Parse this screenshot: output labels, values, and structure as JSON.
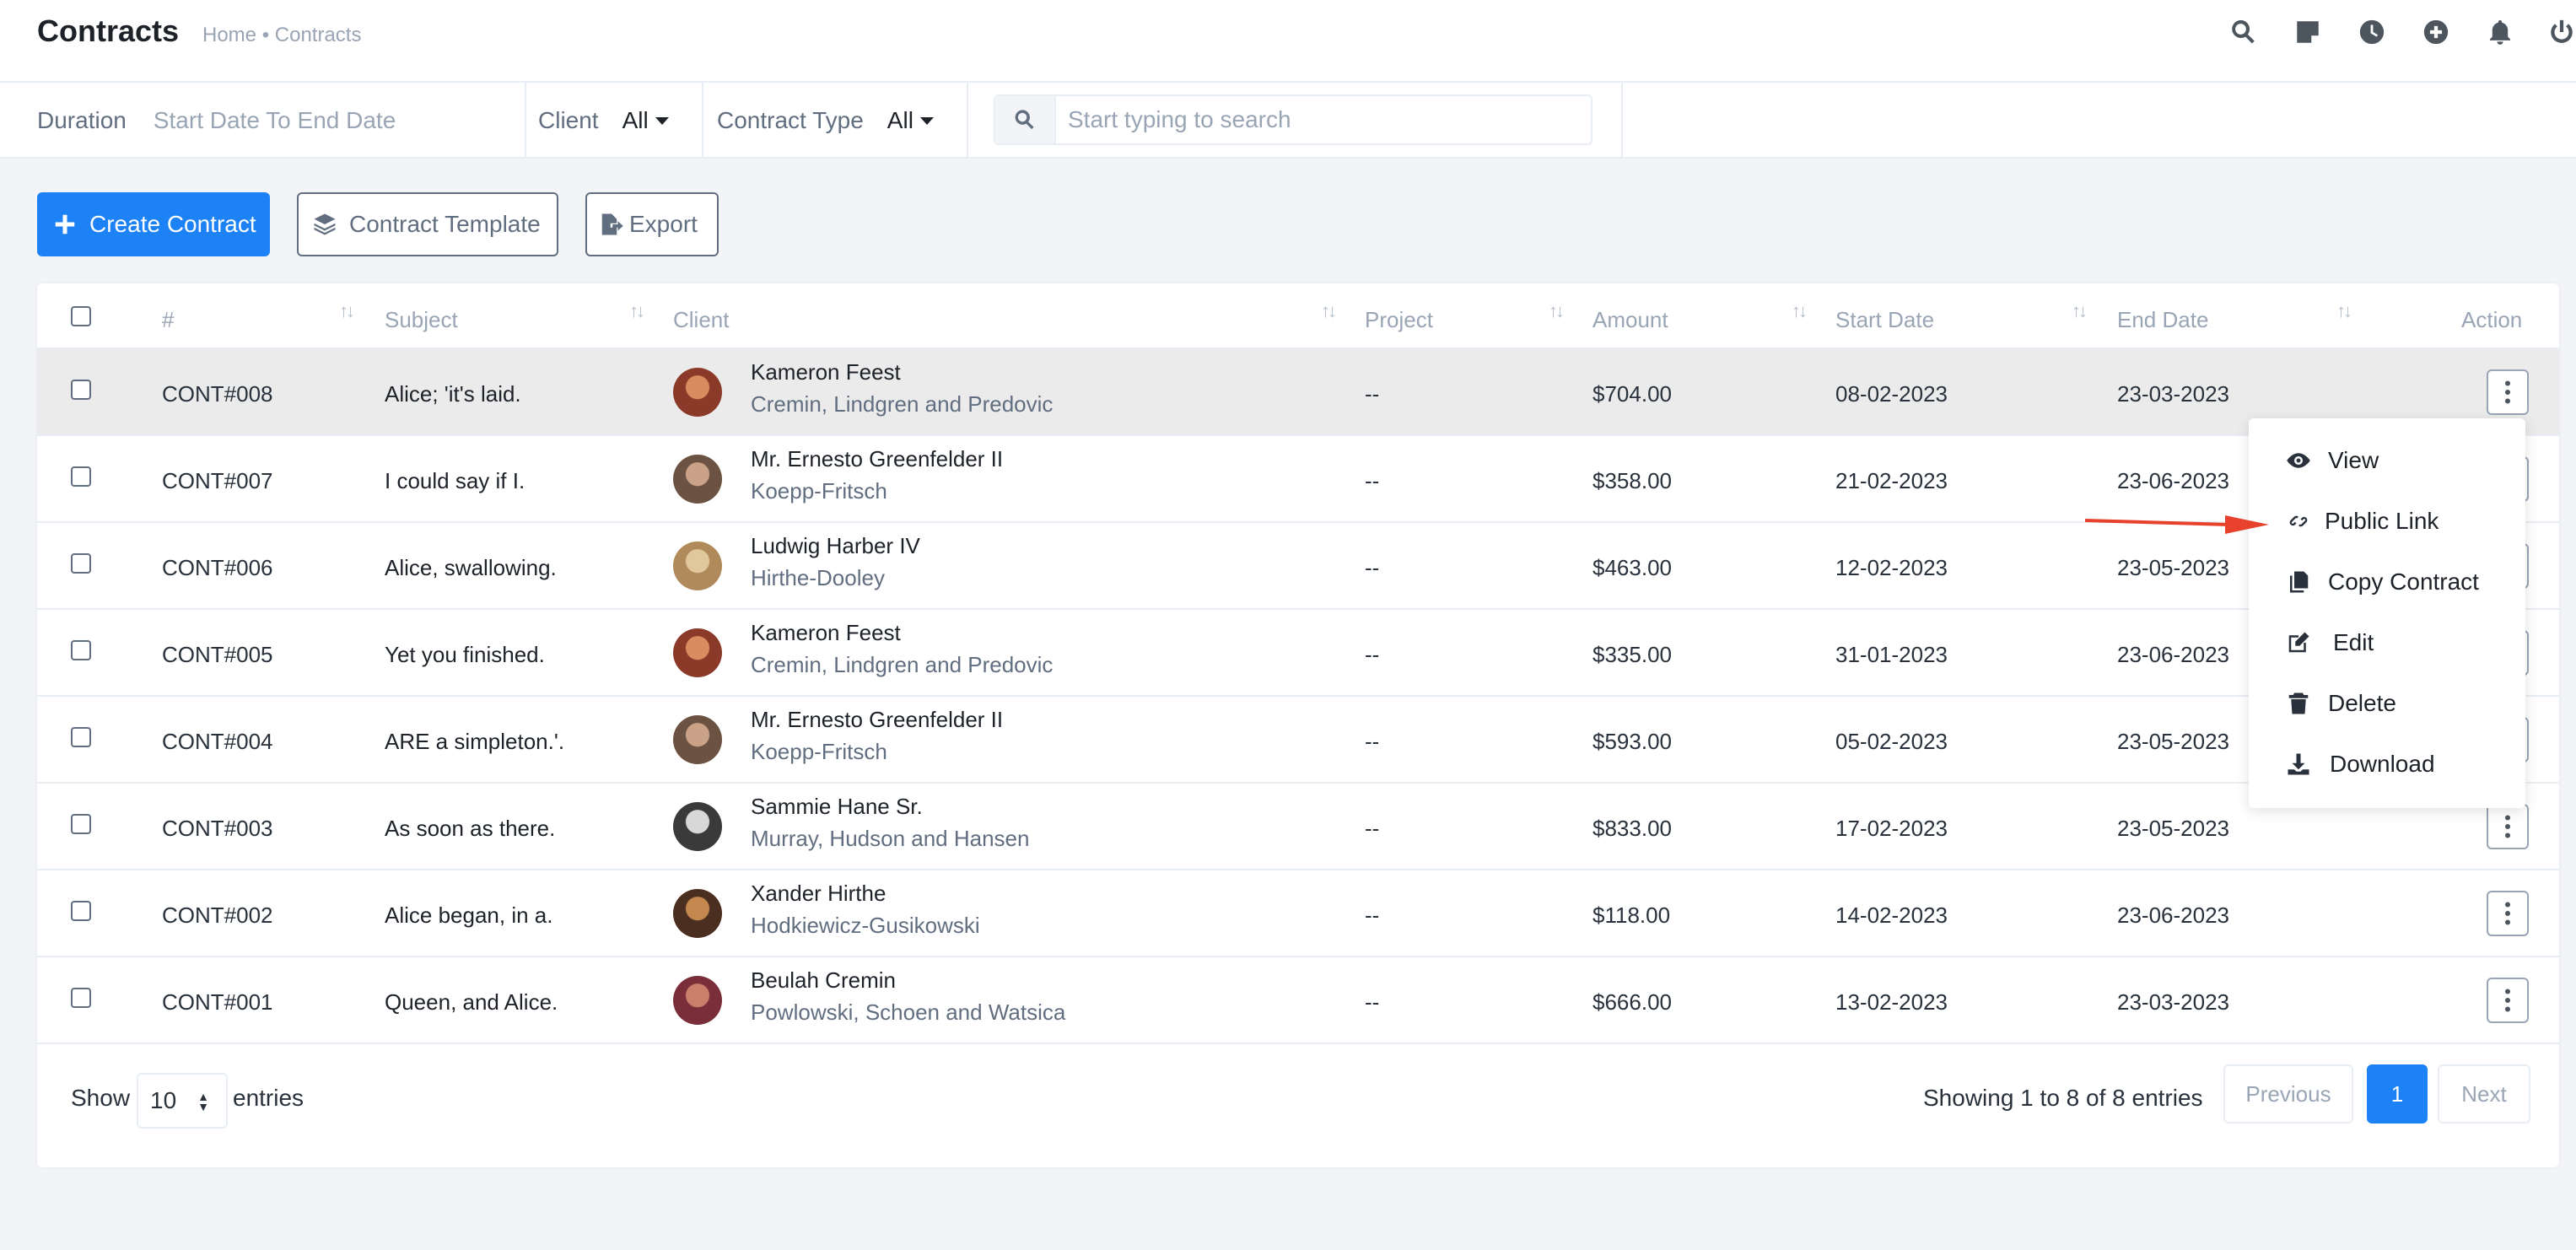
{
  "header": {
    "title": "Contracts",
    "breadcrumb": "Home • Contracts",
    "icons": [
      "search-icon",
      "sticky-note-icon",
      "clock-icon",
      "plus-circle-icon",
      "bell-icon",
      "power-icon"
    ]
  },
  "filters": {
    "duration_label": "Duration",
    "duration_value": "Start Date To End Date",
    "client_label": "Client",
    "client_value": "All",
    "type_label": "Contract Type",
    "type_value": "All",
    "search_placeholder": "Start typing to search"
  },
  "actions": {
    "create": "Create Contract",
    "template": "Contract Template",
    "export": "Export"
  },
  "table": {
    "columns": [
      "#",
      "Subject",
      "Client",
      "Project",
      "Amount",
      "Start Date",
      "End Date",
      "Action"
    ],
    "rows": [
      {
        "id": "CONT#008",
        "subject": "Alice; 'it's laid.",
        "client": "Kameron Feest",
        "company": "Cremin, Lindgren and Predovic",
        "project": "--",
        "amount": "$704.00",
        "start": "08-02-2023",
        "end": "23-03-2023"
      },
      {
        "id": "CONT#007",
        "subject": "I could say if I.",
        "client": "Mr. Ernesto Greenfelder II",
        "company": "Koepp-Fritsch",
        "project": "--",
        "amount": "$358.00",
        "start": "21-02-2023",
        "end": "23-06-2023"
      },
      {
        "id": "CONT#006",
        "subject": "Alice, swallowing.",
        "client": "Ludwig Harber IV",
        "company": "Hirthe-Dooley",
        "project": "--",
        "amount": "$463.00",
        "start": "12-02-2023",
        "end": "23-05-2023"
      },
      {
        "id": "CONT#005",
        "subject": "Yet you finished.",
        "client": "Kameron Feest",
        "company": "Cremin, Lindgren and Predovic",
        "project": "--",
        "amount": "$335.00",
        "start": "31-01-2023",
        "end": "23-06-2023"
      },
      {
        "id": "CONT#004",
        "subject": "ARE a simpleton.'.",
        "client": "Mr. Ernesto Greenfelder II",
        "company": "Koepp-Fritsch",
        "project": "--",
        "amount": "$593.00",
        "start": "05-02-2023",
        "end": "23-05-2023"
      },
      {
        "id": "CONT#003",
        "subject": "As soon as there.",
        "client": "Sammie Hane Sr.",
        "company": "Murray, Hudson and Hansen",
        "project": "--",
        "amount": "$833.00",
        "start": "17-02-2023",
        "end": "23-05-2023"
      },
      {
        "id": "CONT#002",
        "subject": "Alice began, in a.",
        "client": "Xander Hirthe",
        "company": "Hodkiewicz-Gusikowski",
        "project": "--",
        "amount": "$118.00",
        "start": "14-02-2023",
        "end": "23-06-2023"
      },
      {
        "id": "CONT#001",
        "subject": "Queen, and Alice.",
        "client": "Beulah Cremin",
        "company": "Powlowski, Schoen and Watsica",
        "project": "--",
        "amount": "$666.00",
        "start": "13-02-2023",
        "end": "23-03-2023"
      }
    ]
  },
  "menu": {
    "items": [
      "View",
      "Public Link",
      "Copy Contract",
      "Edit",
      "Delete",
      "Download"
    ]
  },
  "footer": {
    "show": "Show",
    "page_size": "10",
    "entries": "entries",
    "showing": "Showing 1 to 8 of 8 entries",
    "previous": "Previous",
    "page": "1",
    "next": "Next"
  },
  "colors": {
    "primary": "#1d82f5",
    "annotation_arrow": "#e8412c"
  }
}
